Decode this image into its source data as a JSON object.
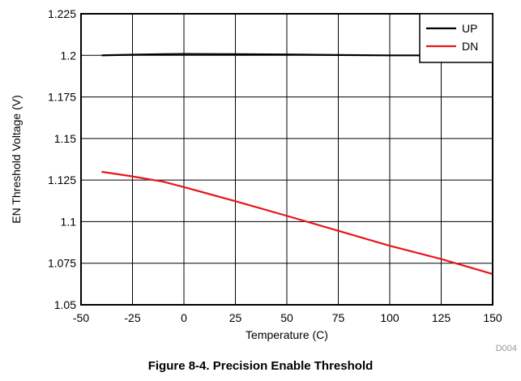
{
  "caption": "Figure 8-4. Precision Enable Threshold",
  "figure_code": "D004",
  "chart_data": {
    "type": "line",
    "title": "",
    "xlabel": "Temperature (C)",
    "ylabel": "EN Threshold Voltage (V)",
    "xlim": [
      -50,
      150
    ],
    "ylim": [
      1.05,
      1.225
    ],
    "xticks": [
      "-50",
      "-25",
      "0",
      "25",
      "50",
      "75",
      "100",
      "125",
      "150"
    ],
    "yticks": [
      "1.05",
      "1.075",
      "1.1",
      "1.125",
      "1.15",
      "1.175",
      "1.2",
      "1.225"
    ],
    "grid": true,
    "legend_position": "top-right",
    "series": [
      {
        "name": "UP",
        "color": "#000000",
        "x": [
          -40,
          -25,
          -10,
          0,
          25,
          50,
          75,
          100,
          125,
          150
        ],
        "y": [
          1.2,
          1.2004,
          1.2007,
          1.2008,
          1.2007,
          1.2005,
          1.2002,
          1.2,
          1.2,
          1.2
        ]
      },
      {
        "name": "DN",
        "color": "#e8151b",
        "x": [
          -40,
          -25,
          -10,
          0,
          25,
          50,
          75,
          100,
          125,
          150
        ],
        "y": [
          1.13,
          1.1272,
          1.124,
          1.1208,
          1.1123,
          1.1035,
          1.0945,
          1.0855,
          1.0775,
          1.0685
        ]
      }
    ]
  }
}
